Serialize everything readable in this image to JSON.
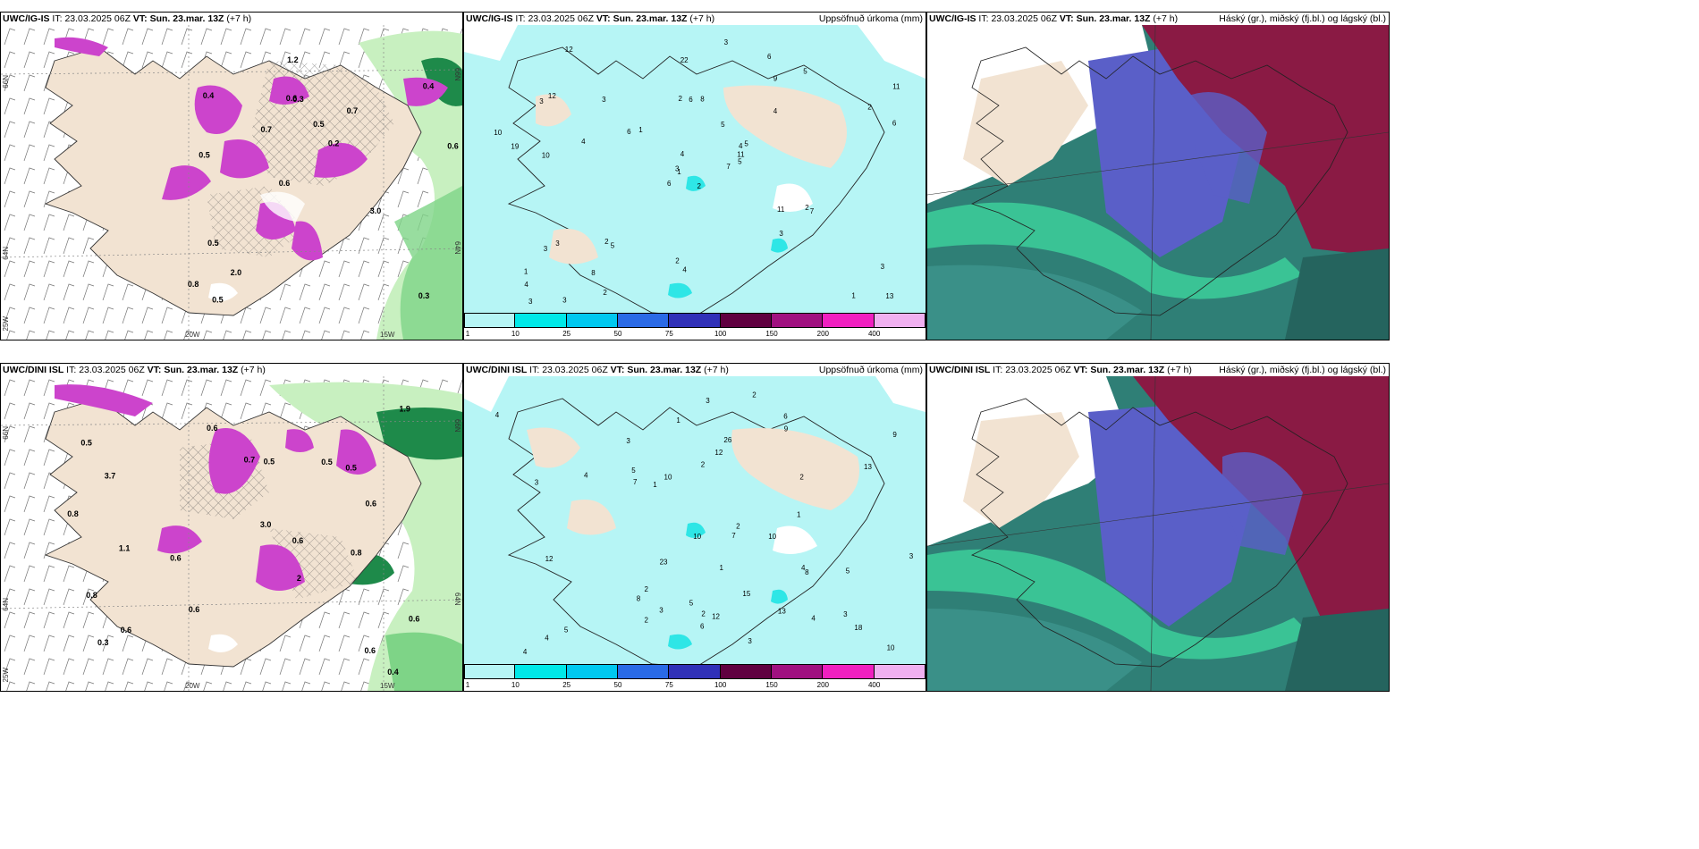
{
  "colors": {
    "land": "#f2e3d2",
    "sea_white": "#ffffff",
    "precip_light": "#b6f5f5",
    "precip_mid": "#2ee6e6",
    "snow_magenta": "#cc44cc",
    "green_light": "#c8f0c0",
    "green_mid": "#7ed487",
    "green_dark": "#1e8a4a",
    "cloud_high": "#8a1a44",
    "cloud_mid": "#5a5fc8",
    "cloud_low": "#2f7f76",
    "cloud_green": "#3fd9a0"
  },
  "rows": [
    {
      "model_short": "UWC/IG-IS",
      "model_label": "UWC/IG-IS",
      "it_label": "IT:",
      "it_value": "23.03.2025 06Z",
      "vt_label": "VT:",
      "vt_value": "Sun. 23.mar. 13Z",
      "lead": "(+7 h)",
      "lon_labels": [
        "20W",
        "15W"
      ],
      "lat_labels": [
        "66N",
        "64N",
        "25W"
      ],
      "right_lat_labels": [
        "66N",
        "64N"
      ],
      "left_values": [
        "0.3",
        "0.5",
        "0.4",
        "0.6",
        "0.7",
        "0.5",
        "0.6",
        "0.5",
        "0.5",
        "0.7",
        "0.8",
        "2.0",
        "0.3",
        "0.2",
        "3.0",
        "0.4",
        "1.2",
        "0.6"
      ],
      "precip_values": [
        "2",
        "3",
        "1",
        "1",
        "4",
        "5",
        "6",
        "8",
        "9",
        "7",
        "12",
        "13",
        "10",
        "11",
        "6",
        "4",
        "3",
        "2",
        "5",
        "3",
        "1",
        "4",
        "8",
        "6",
        "5",
        "7",
        "12",
        "22",
        "19",
        "11",
        "6",
        "3",
        "2",
        "4",
        "3",
        "5",
        "2",
        "1",
        "3",
        "2",
        "3",
        "6",
        "4",
        "3",
        "2",
        "10",
        "11",
        "3",
        "4",
        "5",
        "3",
        "2"
      ]
    },
    {
      "model_short": "UWC/DINI ISL",
      "model_label": "UWC/DINI ISL",
      "it_label": "IT:",
      "it_value": "23.03.2025 06Z",
      "vt_label": "VT:",
      "vt_value": "Sun. 23.mar. 13Z",
      "lead": "(+7 h)",
      "lon_labels": [
        "20W",
        "15W"
      ],
      "lat_labels": [
        "66N",
        "64N",
        "25W"
      ],
      "right_lat_labels": [
        "66N",
        "64N"
      ],
      "left_values": [
        "0.4",
        "1.1",
        "2",
        "0.5",
        "0.6",
        "3.7",
        "0.6",
        "0.6",
        "0.5",
        "0.7",
        "0.5",
        "0.6",
        "0.6",
        "0.6",
        "0.6",
        "0.8",
        "0.8",
        "3.0",
        "0.8",
        "0.3",
        "1.9",
        "0.5",
        "0.6"
      ],
      "precip_values": [
        "4",
        "5",
        "2",
        "1",
        "1",
        "2",
        "3",
        "6",
        "4",
        "8",
        "10",
        "7",
        "3",
        "3",
        "13",
        "5",
        "4",
        "12",
        "10",
        "9",
        "4",
        "5",
        "6",
        "10",
        "8",
        "9",
        "10",
        "12",
        "13",
        "15",
        "18",
        "23",
        "26",
        "4",
        "7",
        "3",
        "2",
        "2",
        "3",
        "5",
        "4",
        "2",
        "3",
        "2",
        "1",
        "1",
        "2",
        "12",
        "3"
      ]
    }
  ],
  "precip_panel": {
    "title": "Uppsöfnuð úrkoma (mm)",
    "colorbar_ticks": [
      "1",
      "10",
      "25",
      "50",
      "75",
      "100",
      "150",
      "200",
      "400"
    ],
    "colorbar_colors": [
      "#b6f5f5",
      "#00e8e8",
      "#00c8f0",
      "#2a6ae6",
      "#3030b8",
      "#600040",
      "#a01080",
      "#f020c0",
      "#f0b0f0"
    ]
  },
  "cloud_panel": {
    "title": "Háský (gr.), miðský (fj.bl.) og lágský (bl.)"
  }
}
